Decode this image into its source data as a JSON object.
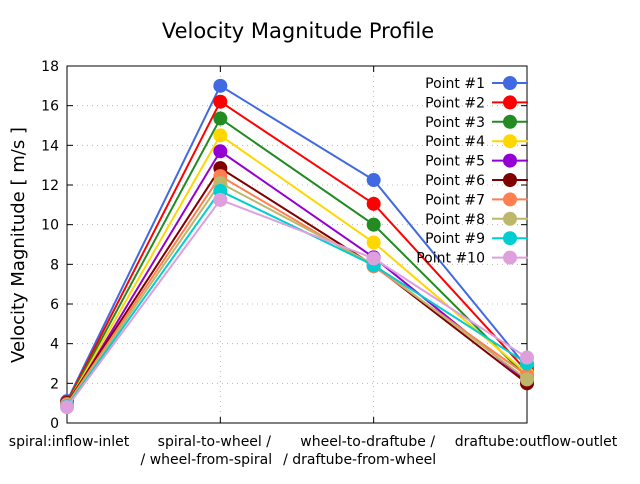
{
  "chart_data": {
    "type": "line",
    "title": "Velocity Magnitude Profile",
    "xlabel": "",
    "ylabel": "Velocity Magnitude [ m/s ]",
    "ylim": [
      0,
      18
    ],
    "yticks": [
      0,
      2,
      4,
      6,
      8,
      10,
      12,
      14,
      16,
      18
    ],
    "grid": true,
    "legend_position": "top-right",
    "categories": [
      [
        "spiral:inflow-inlet"
      ],
      [
        "spiral-to-wheel /",
        "/ wheel-from-spiral"
      ],
      [
        "wheel-to-draftube /",
        "/ draftube-from-wheel"
      ],
      [
        "draftube:outflow-outlet"
      ]
    ],
    "series": [
      {
        "name": "Point #1",
        "color": "#4169e1",
        "values": [
          1.1,
          17.0,
          12.25,
          2.8
        ]
      },
      {
        "name": "Point #2",
        "color": "#ff0000",
        "values": [
          1.05,
          16.2,
          11.05,
          2.6
        ]
      },
      {
        "name": "Point #3",
        "color": "#228b22",
        "values": [
          1.0,
          15.35,
          10.0,
          2.3
        ]
      },
      {
        "name": "Point #4",
        "color": "#ffd700",
        "values": [
          0.95,
          14.5,
          9.1,
          2.5
        ]
      },
      {
        "name": "Point #5",
        "color": "#9400d3",
        "values": [
          0.9,
          13.7,
          8.35,
          2.1
        ]
      },
      {
        "name": "Point #6",
        "color": "#800000",
        "values": [
          1.0,
          12.85,
          7.95,
          2.0
        ]
      },
      {
        "name": "Point #7",
        "color": "#ff7f50",
        "values": [
          0.95,
          12.45,
          7.9,
          2.4
        ]
      },
      {
        "name": "Point #8",
        "color": "#bdb76b",
        "values": [
          0.9,
          12.1,
          8.0,
          2.2
        ]
      },
      {
        "name": "Point #9",
        "color": "#00ced1",
        "values": [
          0.85,
          11.7,
          7.95,
          3.0
        ]
      },
      {
        "name": "Point #10",
        "color": "#dda0dd",
        "values": [
          0.8,
          11.25,
          8.3,
          3.3
        ]
      }
    ]
  }
}
